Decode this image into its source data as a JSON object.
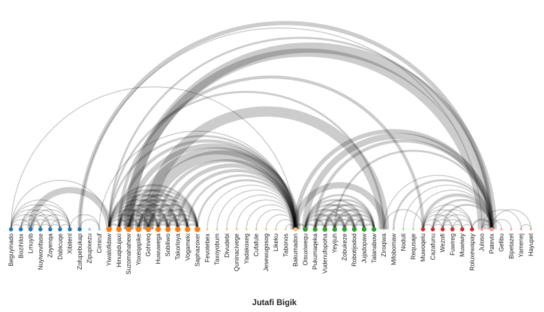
{
  "title": "Jutafi Bigik",
  "colors": {
    "arc": "#000000",
    "label": "#222222",
    "groups": [
      "#1f77b4",
      "#aec7e8",
      "#ff7f0e",
      "#ffbb78",
      "#2ca02c",
      "#98df8a",
      "#d62728",
      "#ff9896"
    ]
  },
  "nodes": [
    {
      "name": "Beguyinado",
      "group": 0,
      "size": 3
    },
    {
      "name": "Bozihilox",
      "group": 0,
      "size": 3
    },
    {
      "name": "Lmuyib",
      "group": 0,
      "size": 3
    },
    {
      "name": "Nuyiwovifase",
      "group": 0,
      "size": 3
    },
    {
      "name": "Zoyenqa",
      "group": 0,
      "size": 3
    },
    {
      "name": "Dabicuqe",
      "group": 0,
      "size": 3
    },
    {
      "name": "Xibitenl",
      "group": 0,
      "size": 3
    },
    {
      "name": "Zofupebukap",
      "group": 0,
      "size": 3
    },
    {
      "name": "Zipupixezu",
      "group": 1,
      "size": 2
    },
    {
      "name": "Cimiruf",
      "group": 1,
      "size": 2
    },
    {
      "name": "Yiwalofidaw",
      "group": 2,
      "size": 4
    },
    {
      "name": "Hinuqidujaxi",
      "group": 2,
      "size": 4
    },
    {
      "name": "Suzomahahew",
      "group": 2,
      "size": 4
    },
    {
      "name": "Yoxeqapike",
      "group": 2,
      "size": 4
    },
    {
      "name": "Gohiveq",
      "group": 2,
      "size": 4
    },
    {
      "name": "Huwuwega",
      "group": 2,
      "size": 4
    },
    {
      "name": "Sobiliwo",
      "group": 2,
      "size": 4
    },
    {
      "name": "Takorloya",
      "group": 2,
      "size": 4
    },
    {
      "name": "Vogameki",
      "group": 2,
      "size": 4
    },
    {
      "name": "Saphazoxer",
      "group": 2,
      "size": 4
    },
    {
      "name": "Fevotebex",
      "group": 3,
      "size": 1.5
    },
    {
      "name": "Taxoyobum",
      "group": 3,
      "size": 1.5
    },
    {
      "name": "Divudebi",
      "group": 3,
      "size": 1.5
    },
    {
      "name": "Quninacivege",
      "group": 3,
      "size": 1.5
    },
    {
      "name": "Yadakoxeg",
      "group": 3,
      "size": 1.5
    },
    {
      "name": "Cufafule",
      "group": 3,
      "size": 1.5
    },
    {
      "name": "Jesewugosog",
      "group": 3,
      "size": 1.5
    },
    {
      "name": "Likeku",
      "group": 3,
      "size": 1.5
    },
    {
      "name": "Tabonos",
      "group": 3,
      "size": 1.5
    },
    {
      "name": "Bakumadon",
      "group": 3,
      "size": 3
    },
    {
      "name": "Oisuxiwequ",
      "group": 4,
      "size": 3.5
    },
    {
      "name": "Pukumaqeka",
      "group": 4,
      "size": 3.5
    },
    {
      "name": "Vudenufopoha",
      "group": 4,
      "size": 3.5
    },
    {
      "name": "Yeyijuh",
      "group": 4,
      "size": 3.5
    },
    {
      "name": "Zobukeze",
      "group": 4,
      "size": 3.5
    },
    {
      "name": "Robotijodod",
      "group": 4,
      "size": 3.5
    },
    {
      "name": "Jujadopaw",
      "group": 4,
      "size": 3.5
    },
    {
      "name": "Talanabow",
      "group": 4,
      "size": 3.5
    },
    {
      "name": "Ziroqiwa",
      "group": 5,
      "size": 1.5
    },
    {
      "name": "Mifobomaw",
      "group": 5,
      "size": 1.5
    },
    {
      "name": "Noduli",
      "group": 5,
      "size": 1.5
    },
    {
      "name": "Requsaje",
      "group": 5,
      "size": 1.5
    },
    {
      "name": "Muwoqelu",
      "group": 6,
      "size": 3
    },
    {
      "name": "Cazafunu",
      "group": 6,
      "size": 3
    },
    {
      "name": "Wezofi",
      "group": 6,
      "size": 3
    },
    {
      "name": "Fuwireg",
      "group": 6,
      "size": 3
    },
    {
      "name": "Muwiwiy",
      "group": 6,
      "size": 3
    },
    {
      "name": "Roluxewapay",
      "group": 6,
      "size": 3
    },
    {
      "name": "Juloso",
      "group": 7,
      "size": 2
    },
    {
      "name": "Patevix",
      "group": 7,
      "size": 3
    },
    {
      "name": "Gefibu",
      "group": 7,
      "size": 1.5
    },
    {
      "name": "Bipetazel",
      "group": 7,
      "size": 1.5
    },
    {
      "name": "Yamenej",
      "group": 7,
      "size": 1.5
    },
    {
      "name": "Hayupel",
      "group": 7,
      "size": 1.5
    }
  ],
  "links": [
    [
      0,
      1,
      1
    ],
    [
      0,
      2,
      1
    ],
    [
      0,
      3,
      1
    ],
    [
      0,
      4,
      1
    ],
    [
      0,
      5,
      1
    ],
    [
      0,
      6,
      1
    ],
    [
      1,
      2,
      1
    ],
    [
      1,
      3,
      1
    ],
    [
      1,
      4,
      1
    ],
    [
      1,
      5,
      1
    ],
    [
      1,
      6,
      1
    ],
    [
      2,
      3,
      1
    ],
    [
      2,
      4,
      1
    ],
    [
      2,
      5,
      1
    ],
    [
      2,
      6,
      1
    ],
    [
      3,
      4,
      1
    ],
    [
      3,
      5,
      1
    ],
    [
      3,
      6,
      1
    ],
    [
      4,
      5,
      1
    ],
    [
      4,
      6,
      1
    ],
    [
      5,
      6,
      1
    ],
    [
      0,
      10,
      1
    ],
    [
      2,
      10,
      6
    ],
    [
      6,
      9,
      1
    ],
    [
      7,
      9,
      1
    ],
    [
      0,
      29,
      1
    ],
    [
      7,
      49,
      4
    ],
    [
      7,
      48,
      1
    ],
    [
      9,
      29,
      1
    ],
    [
      10,
      11,
      2
    ],
    [
      10,
      12,
      2
    ],
    [
      10,
      13,
      2
    ],
    [
      10,
      14,
      2
    ],
    [
      10,
      15,
      2
    ],
    [
      10,
      16,
      2
    ],
    [
      10,
      17,
      2
    ],
    [
      10,
      18,
      2
    ],
    [
      10,
      19,
      2
    ],
    [
      11,
      12,
      2
    ],
    [
      11,
      13,
      2
    ],
    [
      11,
      14,
      2
    ],
    [
      11,
      15,
      2
    ],
    [
      11,
      16,
      2
    ],
    [
      11,
      17,
      2
    ],
    [
      11,
      18,
      2
    ],
    [
      11,
      19,
      2
    ],
    [
      12,
      13,
      2
    ],
    [
      12,
      14,
      2
    ],
    [
      12,
      15,
      2
    ],
    [
      12,
      16,
      2
    ],
    [
      12,
      17,
      2
    ],
    [
      12,
      18,
      2
    ],
    [
      12,
      19,
      2
    ],
    [
      13,
      14,
      2
    ],
    [
      13,
      15,
      2
    ],
    [
      13,
      16,
      2
    ],
    [
      13,
      17,
      2
    ],
    [
      13,
      18,
      2
    ],
    [
      13,
      19,
      2
    ],
    [
      14,
      15,
      2
    ],
    [
      14,
      16,
      2
    ],
    [
      14,
      17,
      2
    ],
    [
      14,
      18,
      2
    ],
    [
      14,
      19,
      2
    ],
    [
      15,
      16,
      2
    ],
    [
      15,
      17,
      2
    ],
    [
      15,
      18,
      2
    ],
    [
      15,
      19,
      2
    ],
    [
      16,
      17,
      2
    ],
    [
      16,
      18,
      2
    ],
    [
      16,
      19,
      2
    ],
    [
      17,
      18,
      2
    ],
    [
      17,
      19,
      2
    ],
    [
      18,
      19,
      2
    ],
    [
      10,
      29,
      2
    ],
    [
      11,
      29,
      3
    ],
    [
      12,
      29,
      5
    ],
    [
      13,
      29,
      7
    ],
    [
      14,
      29,
      10
    ],
    [
      15,
      29,
      3
    ],
    [
      16,
      29,
      4
    ],
    [
      17,
      29,
      3
    ],
    [
      18,
      29,
      2
    ],
    [
      19,
      29,
      2
    ],
    [
      10,
      49,
      2
    ],
    [
      10,
      38,
      2
    ],
    [
      11,
      42,
      3
    ],
    [
      12,
      49,
      10
    ],
    [
      12,
      48,
      8
    ],
    [
      14,
      38,
      10
    ],
    [
      20,
      29,
      1
    ],
    [
      21,
      29,
      1
    ],
    [
      22,
      29,
      1
    ],
    [
      23,
      29,
      1
    ],
    [
      24,
      29,
      1
    ],
    [
      25,
      29,
      1
    ],
    [
      26,
      29,
      1
    ],
    [
      27,
      29,
      1
    ],
    [
      28,
      29,
      1
    ],
    [
      29,
      30,
      2
    ],
    [
      29,
      38,
      6
    ],
    [
      29,
      49,
      4
    ],
    [
      30,
      31,
      2
    ],
    [
      30,
      32,
      2
    ],
    [
      30,
      33,
      2
    ],
    [
      30,
      34,
      2
    ],
    [
      30,
      35,
      2
    ],
    [
      30,
      36,
      2
    ],
    [
      30,
      37,
      2
    ],
    [
      31,
      32,
      2
    ],
    [
      31,
      33,
      2
    ],
    [
      31,
      34,
      2
    ],
    [
      31,
      35,
      2
    ],
    [
      31,
      36,
      2
    ],
    [
      31,
      37,
      2
    ],
    [
      32,
      33,
      2
    ],
    [
      32,
      34,
      2
    ],
    [
      32,
      35,
      2
    ],
    [
      32,
      36,
      2
    ],
    [
      32,
      37,
      2
    ],
    [
      33,
      34,
      2
    ],
    [
      33,
      35,
      2
    ],
    [
      33,
      36,
      2
    ],
    [
      33,
      37,
      2
    ],
    [
      34,
      35,
      2
    ],
    [
      34,
      36,
      2
    ],
    [
      34,
      37,
      2
    ],
    [
      35,
      36,
      2
    ],
    [
      35,
      37,
      2
    ],
    [
      36,
      37,
      2
    ],
    [
      30,
      49,
      6
    ],
    [
      31,
      49,
      3
    ],
    [
      33,
      49,
      2
    ],
    [
      38,
      42,
      1
    ],
    [
      38,
      49,
      1
    ],
    [
      39,
      49,
      2
    ],
    [
      40,
      49,
      1
    ],
    [
      41,
      49,
      1
    ],
    [
      42,
      43,
      1
    ],
    [
      42,
      44,
      1
    ],
    [
      42,
      45,
      1
    ],
    [
      42,
      46,
      1
    ],
    [
      42,
      47,
      1
    ],
    [
      43,
      44,
      1
    ],
    [
      43,
      45,
      1
    ],
    [
      43,
      46,
      1
    ],
    [
      43,
      47,
      1
    ],
    [
      44,
      45,
      1
    ],
    [
      44,
      46,
      1
    ],
    [
      44,
      47,
      1
    ],
    [
      45,
      46,
      1
    ],
    [
      45,
      47,
      1
    ],
    [
      46,
      47,
      1
    ],
    [
      42,
      49,
      3
    ],
    [
      43,
      49,
      2
    ],
    [
      44,
      49,
      2
    ],
    [
      47,
      49,
      2
    ],
    [
      48,
      49,
      1
    ],
    [
      48,
      50,
      1
    ],
    [
      48,
      52,
      1
    ],
    [
      49,
      51,
      1
    ],
    [
      49,
      53,
      1
    ],
    [
      52,
      53,
      1
    ]
  ]
}
